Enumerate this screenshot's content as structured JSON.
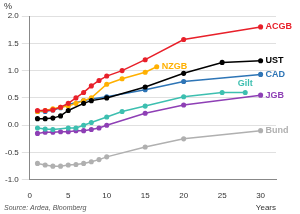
{
  "chart_data": {
    "type": "line",
    "y_label": "%",
    "x_label": "Years",
    "source": "Source: Ardea, Bloomberg",
    "marker": "circle",
    "grid": true,
    "xlim": [
      0,
      32
    ],
    "xticks": [
      0,
      5,
      10,
      15,
      20,
      25,
      30
    ],
    "ylim": [
      -1,
      2
    ],
    "yticks": [
      {
        "value": -1,
        "label": "-1.0"
      },
      -0.5,
      {
        "value": 0,
        "label": "0.0"
      },
      0.5,
      {
        "value": 1,
        "label": "1.0"
      },
      1.5,
      {
        "value": 2,
        "label": "2.0"
      }
    ],
    "series": [
      {
        "name": "ACGB",
        "color": "#e8202a",
        "x": [
          1,
          2,
          3,
          4,
          5,
          6,
          7,
          8,
          9,
          10,
          12,
          15,
          20,
          30
        ],
        "values": [
          0.27,
          0.27,
          0.28,
          0.33,
          0.4,
          0.5,
          0.6,
          0.72,
          0.82,
          0.9,
          1.0,
          1.2,
          1.57,
          1.8
        ]
      },
      {
        "name": "UST",
        "color": "#000000",
        "x": [
          1,
          2,
          3,
          4,
          5,
          7,
          8,
          10,
          15,
          20,
          25,
          30
        ],
        "values": [
          0.12,
          0.12,
          0.13,
          0.17,
          0.27,
          0.4,
          0.45,
          0.5,
          0.7,
          0.95,
          1.15,
          1.18
        ]
      },
      {
        "name": "NZGB",
        "color": "#ffb000",
        "x": [
          1,
          2,
          3,
          4,
          5,
          6,
          7,
          8,
          10,
          12,
          15,
          16.5
        ],
        "values": [
          0.25,
          0.27,
          0.3,
          0.33,
          0.35,
          0.4,
          0.45,
          0.5,
          0.75,
          0.85,
          0.97,
          1.07
        ]
      },
      {
        "name": "CAD",
        "color": "#2e75b6",
        "x": [
          1,
          2,
          3,
          4,
          5,
          7,
          8,
          10,
          15,
          20,
          30
        ],
        "values": [
          0.25,
          0.25,
          0.28,
          0.32,
          0.38,
          0.45,
          0.48,
          0.52,
          0.65,
          0.8,
          0.93
        ]
      },
      {
        "name": "Gilt",
        "color": "#3dbfb0",
        "x": [
          1,
          2,
          3,
          5,
          6,
          7,
          8,
          10,
          12,
          15,
          20,
          25,
          28
        ],
        "values": [
          -0.05,
          -0.07,
          -0.08,
          -0.05,
          -0.05,
          0,
          0.05,
          0.15,
          0.25,
          0.35,
          0.52,
          0.6,
          0.6
        ]
      },
      {
        "name": "JGB",
        "color": "#8e3fb5",
        "x": [
          1,
          2,
          3,
          4,
          5,
          6,
          7,
          8,
          9,
          10,
          15,
          20,
          30
        ],
        "values": [
          -0.15,
          -0.13,
          -0.13,
          -0.12,
          -0.12,
          -0.1,
          -0.1,
          -0.08,
          -0.05,
          0,
          0.22,
          0.37,
          0.55
        ]
      },
      {
        "name": "Bund",
        "color": "#b0b0b0",
        "x": [
          1,
          2,
          3,
          4,
          5,
          6,
          7,
          8,
          9,
          10,
          15,
          20,
          30
        ],
        "values": [
          -0.7,
          -0.73,
          -0.75,
          -0.75,
          -0.73,
          -0.72,
          -0.7,
          -0.67,
          -0.63,
          -0.58,
          -0.4,
          -0.25,
          -0.1
        ]
      }
    ]
  }
}
